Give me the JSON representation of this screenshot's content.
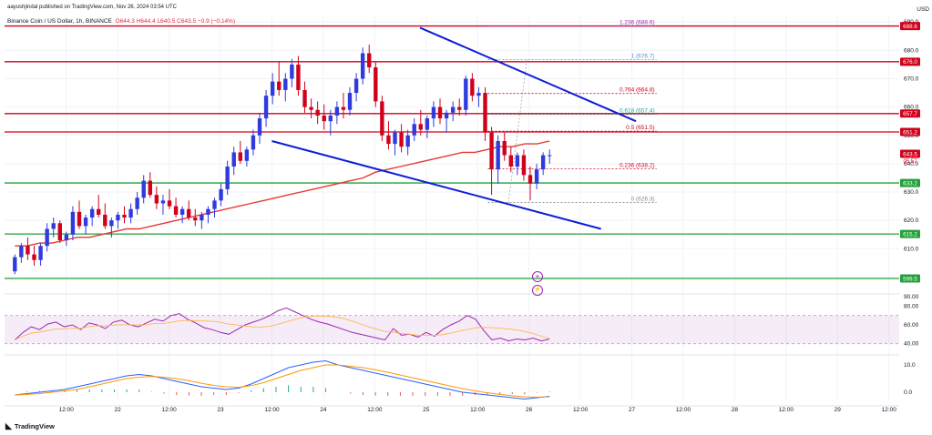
{
  "header": {
    "published": "aayushjindal published on TradingView.com, Nov 26, 2024 03:54 UTC",
    "symbol": "Binance Coin / US Dollar, 1h, BINANCE",
    "o": "O644.3",
    "h": "H644.4",
    "l": "L640.5",
    "c": "C643.5",
    "chg": "−0.9 (−0.14%)",
    "currency": "USD"
  },
  "footer": {
    "brand": "TradingView",
    "brand_icon": "tradingview-logo-icon"
  },
  "colors": {
    "up": "#2f3bdc",
    "down": "#d0021b",
    "ma": "#e53935",
    "channel": "#0d1ed6",
    "resistance": "#d0021b",
    "support": "#23a03a",
    "rsi": "#9c27b0",
    "rsi_ma": "#ffb74d",
    "macd": "#2962ff",
    "signal": "#ff9800",
    "fib": "#888888",
    "grid": "#f0f3fa"
  },
  "indicators": {
    "plus_icon": "plus-circle-icon",
    "flash_icon": "flash-circle-icon",
    "plus_glyph": "+",
    "flash_glyph": "⚡"
  },
  "chart_data": {
    "type": "candlestick",
    "title": "",
    "ylim": [
      595,
      692
    ],
    "y_ticks": [
      "690.0",
      "680.0",
      "670.0",
      "660.0",
      "650.0",
      "640.0",
      "630.0",
      "620.0",
      "610.0",
      "600.0",
      "590.0"
    ],
    "x_ticks": [
      "12:00",
      "22",
      "12:00",
      "23",
      "12:00",
      "24",
      "12:00",
      "25",
      "12:00",
      "26",
      "12:00",
      "27",
      "12:00",
      "28",
      "12:00",
      "29",
      "12:00"
    ],
    "x_tick_positions": [
      0.25,
      0.5,
      0.75,
      1.0,
      1.25,
      1.5,
      1.75,
      2.0,
      2.25,
      2.5,
      2.75,
      3.0,
      3.25,
      3.5,
      3.75,
      4.0,
      4.25
    ],
    "x_range_days": [
      -0.05,
      4.3
    ],
    "candles": [
      [
        602,
        608,
        601,
        607
      ],
      [
        607,
        612,
        605,
        611
      ],
      [
        611,
        614,
        606,
        608
      ],
      [
        608,
        611,
        604,
        606
      ],
      [
        606,
        612,
        604,
        611
      ],
      [
        611,
        619,
        609,
        617
      ],
      [
        617,
        621,
        614,
        619
      ],
      [
        619,
        620,
        612,
        613
      ],
      [
        613,
        616,
        611,
        615
      ],
      [
        615,
        625,
        613,
        623
      ],
      [
        623,
        627,
        617,
        618
      ],
      [
        618,
        622,
        615,
        621
      ],
      [
        621,
        625,
        618,
        624
      ],
      [
        624,
        629,
        621,
        622
      ],
      [
        622,
        626,
        617,
        618
      ],
      [
        618,
        621,
        614,
        620
      ],
      [
        620,
        623,
        617,
        622
      ],
      [
        622,
        625,
        619,
        621
      ],
      [
        621,
        626,
        619,
        624
      ],
      [
        624,
        630,
        622,
        628
      ],
      [
        628,
        636,
        626,
        634
      ],
      [
        634,
        637,
        628,
        629
      ],
      [
        629,
        632,
        624,
        626
      ],
      [
        626,
        629,
        622,
        627
      ],
      [
        627,
        631,
        624,
        625
      ],
      [
        625,
        628,
        621,
        622
      ],
      [
        622,
        625,
        619,
        624
      ],
      [
        624,
        627,
        620,
        621
      ],
      [
        621,
        624,
        618,
        620
      ],
      [
        620,
        623,
        617,
        622
      ],
      [
        622,
        625,
        619,
        624
      ],
      [
        624,
        628,
        621,
        627
      ],
      [
        627,
        633,
        625,
        631
      ],
      [
        631,
        641,
        629,
        639
      ],
      [
        639,
        646,
        636,
        644
      ],
      [
        644,
        648,
        640,
        641
      ],
      [
        641,
        646,
        639,
        645
      ],
      [
        645,
        652,
        643,
        650
      ],
      [
        650,
        658,
        647,
        656
      ],
      [
        656,
        666,
        653,
        664
      ],
      [
        664,
        672,
        661,
        669
      ],
      [
        669,
        676,
        664,
        666
      ],
      [
        666,
        672,
        662,
        670
      ],
      [
        670,
        677,
        667,
        675
      ],
      [
        675,
        678,
        664,
        666
      ],
      [
        666,
        669,
        658,
        660
      ],
      [
        660,
        663,
        656,
        659
      ],
      [
        659,
        662,
        654,
        657
      ],
      [
        657,
        661,
        652,
        655
      ],
      [
        655,
        659,
        650,
        657
      ],
      [
        657,
        662,
        654,
        660
      ],
      [
        660,
        665,
        656,
        659
      ],
      [
        659,
        667,
        657,
        665
      ],
      [
        665,
        672,
        662,
        670
      ],
      [
        670,
        681,
        668,
        679
      ],
      [
        679,
        682,
        672,
        674
      ],
      [
        674,
        676,
        660,
        662
      ],
      [
        662,
        664,
        648,
        650
      ],
      [
        650,
        655,
        645,
        647
      ],
      [
        647,
        652,
        643,
        651
      ],
      [
        651,
        654,
        644,
        646
      ],
      [
        646,
        652,
        643,
        650
      ],
      [
        650,
        656,
        648,
        654
      ],
      [
        654,
        659,
        650,
        652
      ],
      [
        652,
        657,
        649,
        656
      ],
      [
        656,
        662,
        653,
        660
      ],
      [
        660,
        663,
        654,
        656
      ],
      [
        656,
        659,
        651,
        658
      ],
      [
        658,
        662,
        655,
        660
      ],
      [
        660,
        663,
        657,
        659
      ],
      [
        659,
        671,
        657,
        670
      ],
      [
        670,
        672,
        662,
        664
      ],
      [
        664,
        667,
        660,
        665
      ],
      [
        665,
        667,
        648,
        651
      ],
      [
        651,
        653,
        629,
        638
      ],
      [
        638,
        650,
        633,
        648
      ],
      [
        648,
        651,
        641,
        643
      ],
      [
        643,
        646,
        637,
        639
      ],
      [
        639,
        644,
        636,
        643
      ],
      [
        643,
        645,
        634,
        636
      ],
      [
        636,
        639,
        627,
        633
      ],
      [
        633,
        640,
        631,
        638
      ],
      [
        638,
        644,
        636,
        643
      ],
      [
        643,
        645,
        640,
        643
      ]
    ],
    "ma": [
      611,
      611,
      612,
      612,
      613,
      614,
      614,
      615,
      616,
      617,
      617,
      618,
      619,
      620,
      621,
      622,
      623,
      624,
      625,
      626,
      627,
      628,
      629,
      630,
      631,
      632,
      633,
      634,
      635,
      637,
      638,
      639,
      640,
      641,
      642,
      643,
      644,
      644,
      645,
      646,
      646,
      647,
      647,
      648
    ],
    "horizontal_lines": [
      {
        "value": 688.6,
        "kind": "resistance"
      },
      {
        "value": 676.0,
        "kind": "resistance"
      },
      {
        "value": 657.7,
        "kind": "resistance"
      },
      {
        "value": 651.2,
        "kind": "resistance"
      },
      {
        "value": 633.2,
        "kind": "support"
      },
      {
        "value": 615.2,
        "kind": "support"
      },
      {
        "value": 599.5,
        "kind": "support"
      }
    ],
    "price_labels": [
      {
        "value": 688.6,
        "label": "688.6",
        "kind": "resistance"
      },
      {
        "value": 676.0,
        "label": "676.0",
        "kind": "resistance"
      },
      {
        "value": 657.7,
        "label": "657.7",
        "kind": "resistance"
      },
      {
        "value": 651.2,
        "label": "651.2",
        "kind": "resistance"
      },
      {
        "value": 643.5,
        "label": "643.5",
        "kind": "resistance"
      },
      {
        "value": 633.2,
        "label": "633.2",
        "kind": "support"
      },
      {
        "value": 615.2,
        "label": "615.2",
        "kind": "support"
      },
      {
        "value": 599.5,
        "label": "599.5",
        "kind": "support"
      }
    ],
    "countdown": "05:57",
    "fib_levels": [
      {
        "value": 688.6,
        "label": "1.236 (688.6)",
        "color": "#9c27b0"
      },
      {
        "value": 676.7,
        "label": "1 (676.7)",
        "color": "#5c8cd6"
      },
      {
        "value": 664.8,
        "label": "0.764 (664.8)",
        "color": "#d0021b"
      },
      {
        "value": 657.4,
        "label": "0.618 (657.4)",
        "color": "#26a69a"
      },
      {
        "value": 651.5,
        "label": "0.5 (651.5)",
        "color": "#d0021b"
      },
      {
        "value": 638.2,
        "label": "0.236 (638.2)",
        "color": "#d0021b"
      },
      {
        "value": 626.3,
        "label": "0 (626.3)",
        "color": "#888888"
      }
    ],
    "channel_lines": [
      {
        "x": [
          1.97,
          3.02
        ],
        "y": [
          688,
          655
        ]
      },
      {
        "x": [
          1.25,
          2.85
        ],
        "y": [
          648,
          617
        ]
      }
    ],
    "rsi": {
      "ylim": [
        30,
        90
      ],
      "ticks": [
        "90.00",
        "80.00",
        "60.00",
        "40.00"
      ],
      "band": [
        40,
        70
      ],
      "values": [
        44,
        52,
        58,
        55,
        61,
        63,
        58,
        60,
        55,
        62,
        60,
        56,
        63,
        65,
        60,
        58,
        62,
        66,
        64,
        70,
        72,
        66,
        62,
        57,
        55,
        52,
        50,
        55,
        60,
        63,
        66,
        70,
        75,
        78,
        74,
        70,
        66,
        63,
        61,
        58,
        55,
        52,
        50,
        48,
        46,
        44,
        56,
        49,
        50,
        47,
        52,
        48,
        55,
        60,
        64,
        70,
        66,
        54,
        44,
        46,
        43,
        45,
        44,
        46,
        43,
        45
      ]
    },
    "macd": {
      "ylim": [
        -3,
        13
      ],
      "ticks": [
        "10.0",
        "0.0"
      ],
      "macd": [
        -1,
        -0.5,
        0,
        0.5,
        1,
        2,
        3,
        4,
        5,
        6,
        6.5,
        6,
        5,
        4,
        3,
        2,
        1.5,
        1,
        1.5,
        3,
        5,
        7,
        9,
        10,
        11,
        11.5,
        10,
        9,
        8,
        7,
        6,
        5,
        4,
        3,
        2,
        1,
        0,
        -0.5,
        -1,
        -1.5,
        -2,
        -2.5,
        -2,
        -1.5
      ],
      "signal": [
        -1,
        -0.8,
        -0.5,
        0,
        0.5,
        1,
        2,
        3,
        4,
        5,
        5.5,
        5.8,
        5.5,
        5,
        4.2,
        3.3,
        2.5,
        2,
        1.8,
        2.4,
        3.5,
        5,
        6.5,
        8,
        9,
        10,
        10,
        9.5,
        9,
        8.2,
        7.3,
        6.3,
        5.3,
        4.3,
        3.3,
        2.3,
        1.3,
        0.5,
        -0.2,
        -0.8,
        -1.3,
        -1.7,
        -1.8,
        -1.7
      ]
    }
  }
}
